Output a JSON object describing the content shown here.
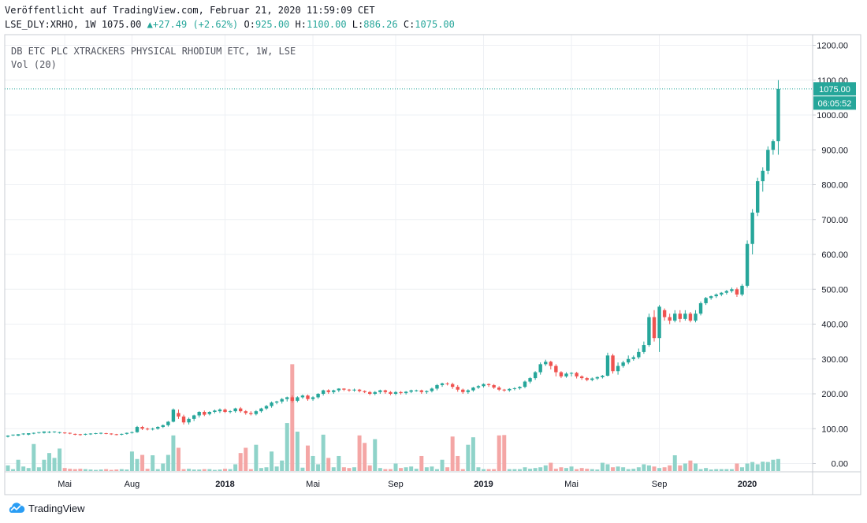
{
  "header": {
    "published": "Veröffentlicht auf TradingView.com, Februar 21, 2020 11:59:09 CET",
    "symbol": "LSE_DLY:XRHO, 1W",
    "last": "1075.00",
    "change": "+27.49 (+2.62%)",
    "o_label": "O:",
    "o_value": "925.00",
    "h_label": "H:",
    "h_value": "1100.00",
    "l_label": "L:",
    "l_value": "886.26",
    "c_label": "C:",
    "c_value": "1075.00"
  },
  "legend": {
    "title": "DB ETC PLC XTRACKERS PHYSICAL RHODIUM ETC, 1W, LSE",
    "volume": "Vol (20)"
  },
  "price_label": "1075.00",
  "countdown_label": "06:05:52",
  "brand": "TradingView",
  "colors": {
    "up": "#26a69a",
    "down": "#ef5350",
    "vol_up": "#8fd3c9",
    "vol_down": "#f4a6a5",
    "grid": "#eef0f4"
  },
  "chart_data": {
    "type": "candlestick",
    "title": "DB ETC PLC XTRACKERS PHYSICAL RHODIUM ETC, 1W, LSE",
    "ylim": [
      -20,
      1230
    ],
    "y_ticks": [
      0,
      100,
      200,
      300,
      400,
      500,
      600,
      700,
      800,
      900,
      1000,
      1100,
      1200
    ],
    "y_tick_labels": [
      "0.00",
      "100.00",
      "200.00",
      "300.00",
      "400.00",
      "500.00",
      "600.00",
      "700.00",
      "800.00",
      "900.00",
      "1000.00",
      "1100.00",
      "1200.00"
    ],
    "x_ticks": [
      {
        "index": 11,
        "label": "Mai",
        "bold": false
      },
      {
        "index": 24,
        "label": "Aug",
        "bold": false
      },
      {
        "index": 42,
        "label": "2018",
        "bold": true
      },
      {
        "index": 59,
        "label": "Mai",
        "bold": false
      },
      {
        "index": 75,
        "label": "Sep",
        "bold": false
      },
      {
        "index": 92,
        "label": "2019",
        "bold": true
      },
      {
        "index": 109,
        "label": "Mai",
        "bold": false
      },
      {
        "index": 126,
        "label": "Sep",
        "bold": false
      },
      {
        "index": 143,
        "label": "2020",
        "bold": true
      }
    ],
    "volume_scale_max": 290,
    "candles": [
      [
        77,
        80,
        75,
        81,
        15
      ],
      [
        81,
        83,
        79,
        83,
        5
      ],
      [
        80,
        84,
        79,
        84,
        30
      ],
      [
        84,
        86,
        82,
        87,
        12
      ],
      [
        83,
        87,
        81,
        87,
        8
      ],
      [
        86,
        88,
        84,
        89,
        72
      ],
      [
        88,
        90,
        86,
        90,
        10
      ],
      [
        88,
        92,
        86,
        92,
        30
      ],
      [
        90,
        91,
        87,
        93,
        48
      ],
      [
        90,
        92,
        88,
        92,
        35
      ],
      [
        88,
        90,
        86,
        91,
        60
      ],
      [
        89,
        88,
        85,
        90,
        8
      ],
      [
        88,
        86,
        84,
        89,
        6
      ],
      [
        85,
        83,
        81,
        86,
        5
      ],
      [
        84,
        82,
        80,
        85,
        6
      ],
      [
        83,
        85,
        81,
        86,
        5
      ],
      [
        84,
        86,
        82,
        87,
        4
      ],
      [
        86,
        87,
        84,
        88,
        3
      ],
      [
        86,
        88,
        84,
        89,
        4
      ],
      [
        87,
        86,
        84,
        88,
        5
      ],
      [
        86,
        84,
        82,
        87,
        3
      ],
      [
        84,
        83,
        81,
        85,
        4
      ],
      [
        83,
        85,
        81,
        86,
        5
      ],
      [
        85,
        88,
        83,
        89,
        4
      ],
      [
        88,
        90,
        86,
        92,
        52
      ],
      [
        90,
        105,
        88,
        108,
        32
      ],
      [
        105,
        100,
        96,
        108,
        43
      ],
      [
        100,
        98,
        95,
        103,
        6
      ],
      [
        98,
        100,
        95,
        103,
        42
      ],
      [
        100,
        105,
        97,
        107,
        5
      ],
      [
        105,
        110,
        102,
        112,
        20
      ],
      [
        110,
        120,
        106,
        122,
        43
      ],
      [
        120,
        155,
        118,
        158,
        95
      ],
      [
        145,
        135,
        128,
        155,
        62
      ],
      [
        135,
        118,
        112,
        140,
        5
      ],
      [
        118,
        128,
        112,
        132,
        6
      ],
      [
        128,
        138,
        122,
        140,
        4
      ],
      [
        138,
        148,
        132,
        150,
        4
      ],
      [
        148,
        140,
        136,
        152,
        5
      ],
      [
        142,
        148,
        138,
        150,
        5
      ],
      [
        148,
        152,
        144,
        155,
        3
      ],
      [
        150,
        155,
        145,
        158,
        4
      ],
      [
        155,
        148,
        145,
        158,
        6
      ],
      [
        148,
        150,
        144,
        153,
        5
      ],
      [
        150,
        158,
        146,
        160,
        18
      ],
      [
        158,
        150,
        146,
        162,
        48
      ],
      [
        150,
        145,
        140,
        153,
        62
      ],
      [
        145,
        142,
        138,
        150,
        5
      ],
      [
        142,
        150,
        138,
        153,
        70
      ],
      [
        150,
        158,
        146,
        160,
        8
      ],
      [
        158,
        165,
        154,
        168,
        10
      ],
      [
        165,
        175,
        160,
        178,
        52
      ],
      [
        175,
        178,
        170,
        180,
        12
      ],
      [
        178,
        185,
        172,
        188,
        28
      ],
      [
        185,
        190,
        178,
        192,
        128
      ],
      [
        190,
        180,
        175,
        195,
        285
      ],
      [
        180,
        190,
        176,
        193,
        105
      ],
      [
        190,
        195,
        186,
        198,
        9
      ],
      [
        195,
        185,
        180,
        198,
        68
      ],
      [
        185,
        190,
        180,
        193,
        40
      ],
      [
        190,
        200,
        186,
        202,
        18
      ],
      [
        200,
        210,
        195,
        212,
        97
      ],
      [
        210,
        205,
        200,
        213,
        35
      ],
      [
        205,
        210,
        200,
        212,
        10
      ],
      [
        210,
        215,
        205,
        216,
        40
      ],
      [
        215,
        212,
        208,
        216,
        10
      ],
      [
        212,
        210,
        206,
        214,
        8
      ],
      [
        210,
        212,
        206,
        215,
        10
      ],
      [
        212,
        208,
        204,
        214,
        95
      ],
      [
        208,
        205,
        202,
        210,
        75
      ],
      [
        205,
        200,
        196,
        208,
        15
      ],
      [
        200,
        205,
        196,
        208,
        85
      ],
      [
        205,
        210,
        200,
        212,
        8
      ],
      [
        210,
        205,
        200,
        212,
        5
      ],
      [
        205,
        200,
        196,
        208,
        5
      ],
      [
        200,
        205,
        196,
        208,
        20
      ],
      [
        205,
        202,
        198,
        208,
        8
      ],
      [
        202,
        206,
        198,
        208,
        10
      ],
      [
        206,
        210,
        202,
        212,
        12
      ],
      [
        210,
        210,
        206,
        212,
        6
      ],
      [
        210,
        205,
        200,
        212,
        40
      ],
      [
        205,
        208,
        200,
        210,
        10
      ],
      [
        208,
        215,
        204,
        218,
        12
      ],
      [
        215,
        225,
        210,
        228,
        5
      ],
      [
        225,
        230,
        220,
        232,
        30
      ],
      [
        230,
        228,
        224,
        233,
        10
      ],
      [
        228,
        220,
        214,
        232,
        92
      ],
      [
        220,
        212,
        206,
        225,
        40
      ],
      [
        212,
        205,
        200,
        215,
        5
      ],
      [
        205,
        210,
        200,
        213,
        70
      ],
      [
        210,
        218,
        206,
        220,
        90
      ],
      [
        218,
        222,
        214,
        225,
        10
      ],
      [
        222,
        228,
        218,
        230,
        5
      ],
      [
        228,
        225,
        220,
        230,
        5
      ],
      [
        225,
        218,
        214,
        228,
        5
      ],
      [
        218,
        212,
        208,
        222,
        95
      ],
      [
        212,
        210,
        206,
        214,
        96
      ],
      [
        210,
        214,
        206,
        216,
        5
      ],
      [
        214,
        216,
        210,
        219,
        5
      ],
      [
        216,
        220,
        212,
        222,
        5
      ],
      [
        220,
        235,
        216,
        238,
        10
      ],
      [
        235,
        245,
        230,
        248,
        6
      ],
      [
        245,
        262,
        240,
        265,
        8
      ],
      [
        262,
        285,
        255,
        290,
        10
      ],
      [
        285,
        292,
        280,
        298,
        15
      ],
      [
        292,
        280,
        270,
        295,
        22
      ],
      [
        280,
        262,
        250,
        285,
        6
      ],
      [
        262,
        250,
        245,
        265,
        10
      ],
      [
        250,
        258,
        246,
        262,
        8
      ],
      [
        258,
        260,
        250,
        262,
        12
      ],
      [
        260,
        250,
        244,
        263,
        5
      ],
      [
        250,
        245,
        240,
        253,
        8
      ],
      [
        245,
        240,
        236,
        248,
        6
      ],
      [
        240,
        244,
        236,
        247,
        5
      ],
      [
        244,
        248,
        240,
        250,
        4
      ],
      [
        248,
        252,
        244,
        254,
        22
      ],
      [
        252,
        310,
        250,
        318,
        18
      ],
      [
        310,
        265,
        258,
        315,
        10
      ],
      [
        265,
        280,
        255,
        290,
        12
      ],
      [
        280,
        290,
        275,
        295,
        10
      ],
      [
        290,
        300,
        285,
        310,
        5
      ],
      [
        300,
        305,
        295,
        310,
        6
      ],
      [
        305,
        320,
        300,
        330,
        10
      ],
      [
        320,
        340,
        315,
        350,
        18
      ],
      [
        340,
        420,
        335,
        430,
        15
      ],
      [
        420,
        360,
        350,
        440,
        12
      ],
      [
        360,
        450,
        320,
        455,
        8
      ],
      [
        440,
        420,
        410,
        445,
        10
      ],
      [
        420,
        410,
        400,
        430,
        15
      ],
      [
        410,
        430,
        405,
        440,
        42
      ],
      [
        430,
        415,
        405,
        440,
        15
      ],
      [
        415,
        430,
        410,
        440,
        20
      ],
      [
        430,
        410,
        405,
        435,
        28
      ],
      [
        410,
        430,
        405,
        440,
        20
      ],
      [
        430,
        460,
        425,
        465,
        5
      ],
      [
        460,
        475,
        455,
        478,
        8
      ],
      [
        475,
        480,
        470,
        482,
        4
      ],
      [
        480,
        485,
        475,
        488,
        5
      ],
      [
        485,
        490,
        480,
        492,
        5
      ],
      [
        490,
        495,
        485,
        498,
        5
      ],
      [
        495,
        500,
        490,
        505,
        5
      ],
      [
        500,
        485,
        478,
        505,
        20
      ],
      [
        485,
        510,
        480,
        515,
        10
      ],
      [
        510,
        630,
        505,
        640,
        20
      ],
      [
        630,
        720,
        600,
        730,
        24
      ],
      [
        720,
        810,
        710,
        820,
        18
      ],
      [
        810,
        840,
        780,
        850,
        25
      ],
      [
        840,
        900,
        830,
        910,
        24
      ],
      [
        900,
        925,
        886,
        930,
        30
      ],
      [
        925,
        1075,
        886,
        1100,
        32
      ]
    ]
  }
}
